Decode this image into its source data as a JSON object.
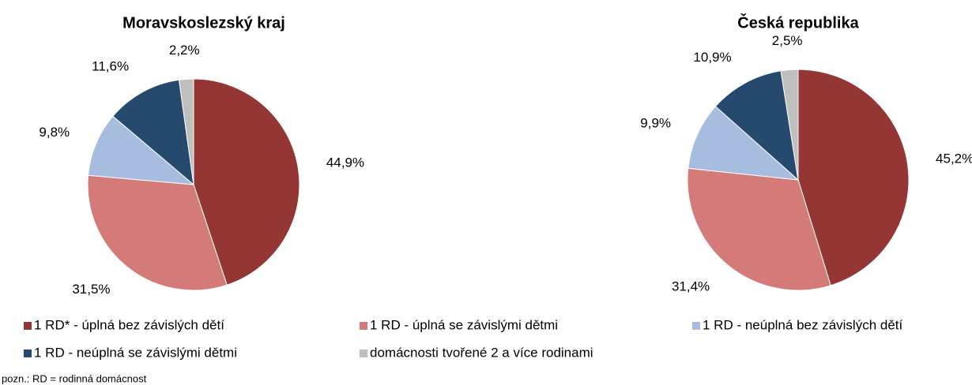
{
  "chart_data": [
    {
      "type": "pie",
      "title": "Moravskoslezský kraj",
      "categories": [
        "1 RD* - úplná bez závislých dětí",
        "1 RD - úplná se závislými dětmi",
        "1 RD - neúplná bez závislých dětí",
        "1 RD - neúplná se závislými dětmi",
        "domácnosti tvořené 2 a více rodinami"
      ],
      "values": [
        44.9,
        31.5,
        9.8,
        11.6,
        2.2
      ],
      "value_labels": [
        "44,9%",
        "31,5%",
        "9,8%",
        "11,6%",
        "2,2%"
      ],
      "colors": [
        "#943634",
        "#d47b79",
        "#a6bddf",
        "#264a6e",
        "#bfbfbf"
      ],
      "legend": "bottom"
    },
    {
      "type": "pie",
      "title": "Česká republika",
      "categories": [
        "1 RD* - úplná bez závislých dětí",
        "1 RD - úplná se závislými dětmi",
        "1 RD - neúplná bez závislých dětí",
        "1 RD - neúplná se závislými dětmi",
        "domácnosti tvořené 2 a více rodinami"
      ],
      "values": [
        45.2,
        31.4,
        9.9,
        10.9,
        2.5
      ],
      "value_labels": [
        "45,2%",
        "31,4%",
        "9,9%",
        "10,9%",
        "2,5%"
      ],
      "colors": [
        "#943634",
        "#d47b79",
        "#a6bddf",
        "#264a6e",
        "#bfbfbf"
      ]
    }
  ],
  "note": "pozn.: RD = rodinná domácnost"
}
